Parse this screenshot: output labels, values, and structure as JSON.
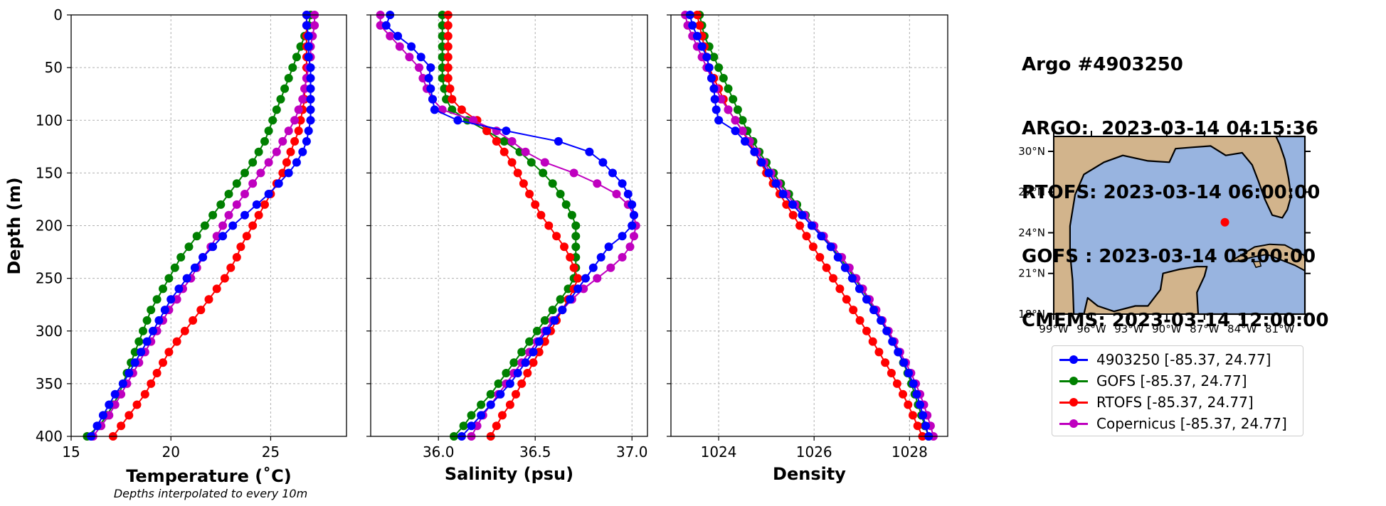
{
  "info": {
    "lines": [
      "Argo #4903250",
      "ARGO:  2023-03-14 04:15:36",
      "RTOFS: 2023-03-14 06:00:00",
      "GOFS : 2023-03-14 03:00:00",
      "CMEMS: 2023-03-14 12:00:00"
    ]
  },
  "colors": {
    "argo": "#0000ff",
    "gofs": "#008000",
    "rtofs": "#ff0000",
    "copernicus": "#bf00bf",
    "land": "#d2b48c",
    "ocean": "#98b4e0",
    "marker": "#ff0000"
  },
  "chart_data": [
    {
      "type": "line",
      "xlabel": "Temperature (˚C)",
      "ylabel": "Depth (m)",
      "note": "Depths interpolated to every 10m",
      "xlim": [
        15,
        28.8
      ],
      "ylim": [
        400,
        0
      ],
      "xticks": [
        15,
        20,
        25
      ],
      "yticks": [
        0,
        50,
        100,
        150,
        200,
        250,
        300,
        350,
        400
      ],
      "grid": true,
      "depth": [
        0,
        10,
        20,
        30,
        40,
        50,
        60,
        70,
        80,
        90,
        100,
        110,
        120,
        130,
        140,
        150,
        160,
        170,
        180,
        190,
        200,
        210,
        220,
        230,
        240,
        250,
        260,
        270,
        280,
        290,
        300,
        310,
        320,
        330,
        340,
        350,
        360,
        370,
        380,
        390,
        400
      ],
      "series": [
        {
          "key": "argo",
          "values": [
            26.8,
            26.8,
            26.9,
            26.9,
            26.9,
            27.0,
            27.0,
            27.0,
            27.0,
            27.0,
            27.0,
            26.9,
            26.8,
            26.6,
            26.3,
            25.9,
            25.4,
            24.9,
            24.3,
            23.7,
            23.1,
            22.6,
            22.1,
            21.6,
            21.2,
            20.8,
            20.4,
            20.0,
            19.7,
            19.4,
            19.1,
            18.8,
            18.5,
            18.2,
            17.9,
            17.6,
            17.2,
            16.9,
            16.6,
            16.3,
            16.0
          ],
          "markers": false
        },
        {
          "key": "gofs",
          "values": [
            27.0,
            26.9,
            26.7,
            26.5,
            26.3,
            26.1,
            25.9,
            25.7,
            25.5,
            25.3,
            25.1,
            24.9,
            24.7,
            24.4,
            24.1,
            23.7,
            23.3,
            22.9,
            22.5,
            22.1,
            21.7,
            21.3,
            20.9,
            20.5,
            20.2,
            19.9,
            19.6,
            19.3,
            19.0,
            18.8,
            18.6,
            18.4,
            18.2,
            18.0,
            17.8,
            17.6,
            17.4,
            17.1,
            16.8,
            16.4,
            15.8
          ],
          "markers": true
        },
        {
          "key": "rtofs",
          "values": [
            26.8,
            26.8,
            26.8,
            26.8,
            26.8,
            26.8,
            26.8,
            26.7,
            26.7,
            26.6,
            26.5,
            26.4,
            26.2,
            26.0,
            25.8,
            25.6,
            25.3,
            25.0,
            24.7,
            24.4,
            24.1,
            23.8,
            23.5,
            23.3,
            23.0,
            22.7,
            22.3,
            21.9,
            21.5,
            21.1,
            20.7,
            20.3,
            19.9,
            19.6,
            19.3,
            19.0,
            18.7,
            18.3,
            17.9,
            17.5,
            17.1
          ],
          "markers": true
        },
        {
          "key": "copernicus",
          "values": [
            27.2,
            27.2,
            27.1,
            27.0,
            27.0,
            26.9,
            26.8,
            26.7,
            26.6,
            26.4,
            26.2,
            25.9,
            25.6,
            25.3,
            24.9,
            24.5,
            24.1,
            23.7,
            23.3,
            22.9,
            22.6,
            22.3,
            22.0,
            21.6,
            21.3,
            21.0,
            20.6,
            20.3,
            19.9,
            19.6,
            19.3,
            19.0,
            18.7,
            18.4,
            18.1,
            17.8,
            17.5,
            17.2,
            16.9,
            16.5,
            16.1
          ],
          "markers": true
        }
      ]
    },
    {
      "type": "line",
      "xlabel": "Salinity (psu)",
      "ylabel": "",
      "xlim": [
        35.65,
        37.08
      ],
      "ylim": [
        400,
        0
      ],
      "xticks": [
        36.0,
        36.5,
        37.0
      ],
      "xtick_labels": [
        "36.0",
        "36.5",
        "37.0"
      ],
      "grid": true,
      "depth": [
        0,
        10,
        20,
        30,
        40,
        50,
        60,
        70,
        80,
        90,
        100,
        110,
        120,
        130,
        140,
        150,
        160,
        170,
        180,
        190,
        200,
        210,
        220,
        230,
        240,
        250,
        260,
        270,
        280,
        290,
        300,
        310,
        320,
        330,
        340,
        350,
        360,
        370,
        380,
        390,
        400
      ],
      "series": [
        {
          "key": "argo",
          "values": [
            35.75,
            35.73,
            35.79,
            35.86,
            35.91,
            35.96,
            35.95,
            35.96,
            35.97,
            35.98,
            36.1,
            36.35,
            36.62,
            36.78,
            36.85,
            36.9,
            36.95,
            36.98,
            37.0,
            37.01,
            37.0,
            36.95,
            36.88,
            36.84,
            36.8,
            36.76,
            36.72,
            36.68,
            36.64,
            36.6,
            36.56,
            36.52,
            36.49,
            36.45,
            36.41,
            36.37,
            36.32,
            36.27,
            36.22,
            36.17,
            36.12
          ],
          "markers": false
        },
        {
          "key": "gofs",
          "values": [
            36.02,
            36.02,
            36.02,
            36.02,
            36.02,
            36.02,
            36.02,
            36.03,
            36.04,
            36.07,
            36.15,
            36.25,
            36.34,
            36.42,
            36.48,
            36.54,
            36.59,
            36.63,
            36.66,
            36.69,
            36.71,
            36.71,
            36.71,
            36.71,
            36.71,
            36.7,
            36.67,
            36.63,
            36.59,
            36.55,
            36.51,
            36.47,
            36.43,
            36.39,
            36.35,
            36.31,
            36.27,
            36.22,
            36.17,
            36.13,
            36.08
          ],
          "markers": true
        },
        {
          "key": "rtofs",
          "values": [
            36.05,
            36.05,
            36.05,
            36.05,
            36.05,
            36.05,
            36.05,
            36.06,
            36.07,
            36.12,
            36.2,
            36.25,
            36.3,
            36.34,
            36.38,
            36.41,
            36.44,
            36.47,
            36.5,
            36.53,
            36.57,
            36.61,
            36.65,
            36.68,
            36.7,
            36.72,
            36.7,
            36.67,
            36.64,
            36.61,
            36.58,
            36.55,
            36.52,
            36.49,
            36.46,
            36.43,
            36.4,
            36.37,
            36.33,
            36.3,
            36.27
          ],
          "markers": true
        },
        {
          "key": "copernicus",
          "values": [
            35.7,
            35.7,
            35.75,
            35.8,
            35.85,
            35.9,
            35.92,
            35.94,
            35.97,
            36.02,
            36.18,
            36.3,
            36.38,
            36.45,
            36.55,
            36.7,
            36.82,
            36.92,
            36.98,
            37.01,
            37.02,
            37.01,
            36.99,
            36.95,
            36.89,
            36.82,
            36.75,
            36.69,
            36.64,
            36.59,
            36.55,
            36.51,
            36.47,
            36.43,
            36.39,
            36.35,
            36.31,
            36.27,
            36.23,
            36.2,
            36.17
          ],
          "markers": true
        }
      ]
    },
    {
      "type": "line",
      "xlabel": "Density",
      "ylabel": "",
      "xlim": [
        1023,
        1028.8
      ],
      "ylim": [
        400,
        0
      ],
      "xticks": [
        1024,
        1026,
        1028
      ],
      "grid": true,
      "depth": [
        0,
        10,
        20,
        30,
        40,
        50,
        60,
        70,
        80,
        90,
        100,
        110,
        120,
        130,
        140,
        150,
        160,
        170,
        180,
        190,
        200,
        210,
        220,
        230,
        240,
        250,
        260,
        270,
        280,
        290,
        300,
        310,
        320,
        330,
        340,
        350,
        360,
        370,
        380,
        390,
        400
      ],
      "series": [
        {
          "key": "argo",
          "values": [
            1023.4,
            1023.45,
            1023.55,
            1023.65,
            1023.75,
            1023.8,
            1023.85,
            1023.9,
            1023.92,
            1023.95,
            1024.0,
            1024.35,
            1024.55,
            1024.75,
            1024.9,
            1025.05,
            1025.2,
            1025.35,
            1025.55,
            1025.75,
            1025.95,
            1026.15,
            1026.35,
            1026.5,
            1026.65,
            1026.8,
            1026.95,
            1027.1,
            1027.25,
            1027.4,
            1027.52,
            1027.64,
            1027.76,
            1027.88,
            1027.98,
            1028.08,
            1028.15,
            1028.22,
            1028.28,
            1028.34,
            1028.4
          ],
          "markers": false
        },
        {
          "key": "gofs",
          "values": [
            1023.6,
            1023.65,
            1023.7,
            1023.8,
            1023.9,
            1024.0,
            1024.1,
            1024.2,
            1024.3,
            1024.4,
            1024.5,
            1024.6,
            1024.72,
            1024.85,
            1025.0,
            1025.15,
            1025.3,
            1025.47,
            1025.64,
            1025.82,
            1026.0,
            1026.18,
            1026.36,
            1026.53,
            1026.7,
            1026.85,
            1027.0,
            1027.14,
            1027.28,
            1027.41,
            1027.54,
            1027.66,
            1027.77,
            1027.87,
            1027.96,
            1028.04,
            1028.11,
            1028.18,
            1028.25,
            1028.32,
            1028.4
          ],
          "markers": true
        },
        {
          "key": "rtofs",
          "values": [
            1023.55,
            1023.6,
            1023.65,
            1023.7,
            1023.75,
            1023.8,
            1023.9,
            1024.0,
            1024.1,
            1024.2,
            1024.35,
            1024.5,
            1024.62,
            1024.75,
            1024.88,
            1025.0,
            1025.14,
            1025.28,
            1025.42,
            1025.56,
            1025.7,
            1025.84,
            1025.98,
            1026.12,
            1026.26,
            1026.4,
            1026.54,
            1026.68,
            1026.82,
            1026.96,
            1027.1,
            1027.23,
            1027.36,
            1027.49,
            1027.62,
            1027.74,
            1027.86,
            1027.97,
            1028.07,
            1028.17,
            1028.27
          ],
          "markers": true
        },
        {
          "key": "copernicus",
          "values": [
            1023.3,
            1023.35,
            1023.45,
            1023.55,
            1023.65,
            1023.75,
            1023.85,
            1023.95,
            1024.05,
            1024.2,
            1024.35,
            1024.5,
            1024.65,
            1024.8,
            1024.95,
            1025.1,
            1025.25,
            1025.42,
            1025.6,
            1025.8,
            1026.0,
            1026.2,
            1026.4,
            1026.58,
            1026.74,
            1026.88,
            1027.02,
            1027.16,
            1027.3,
            1027.43,
            1027.56,
            1027.68,
            1027.8,
            1027.92,
            1028.03,
            1028.13,
            1028.22,
            1028.3,
            1028.37,
            1028.44,
            1028.5
          ],
          "markers": true
        }
      ]
    }
  ],
  "map": {
    "lon_ticks": [
      "99°W",
      "96°W",
      "93°W",
      "90°W",
      "87°W",
      "84°W",
      "81°W"
    ],
    "lat_ticks": [
      "30°N",
      "27°N",
      "24°N",
      "21°N",
      "18°N"
    ],
    "lon_values": [
      -99,
      -96,
      -93,
      -90,
      -87,
      -84,
      -81
    ],
    "lat_values": [
      30,
      27,
      24,
      21,
      18
    ],
    "lon_range": [
      -99.0,
      -79.0
    ],
    "lat_range": [
      18.0,
      31.1
    ],
    "float_position": [
      -85.37,
      24.77
    ]
  },
  "legend": [
    {
      "key": "argo",
      "label": "4903250 [-85.37, 24.77]"
    },
    {
      "key": "gofs",
      "label": "GOFS [-85.37, 24.77]"
    },
    {
      "key": "rtofs",
      "label": "RTOFS [-85.37, 24.77]"
    },
    {
      "key": "copernicus",
      "label": "Copernicus [-85.37, 24.77]"
    }
  ]
}
